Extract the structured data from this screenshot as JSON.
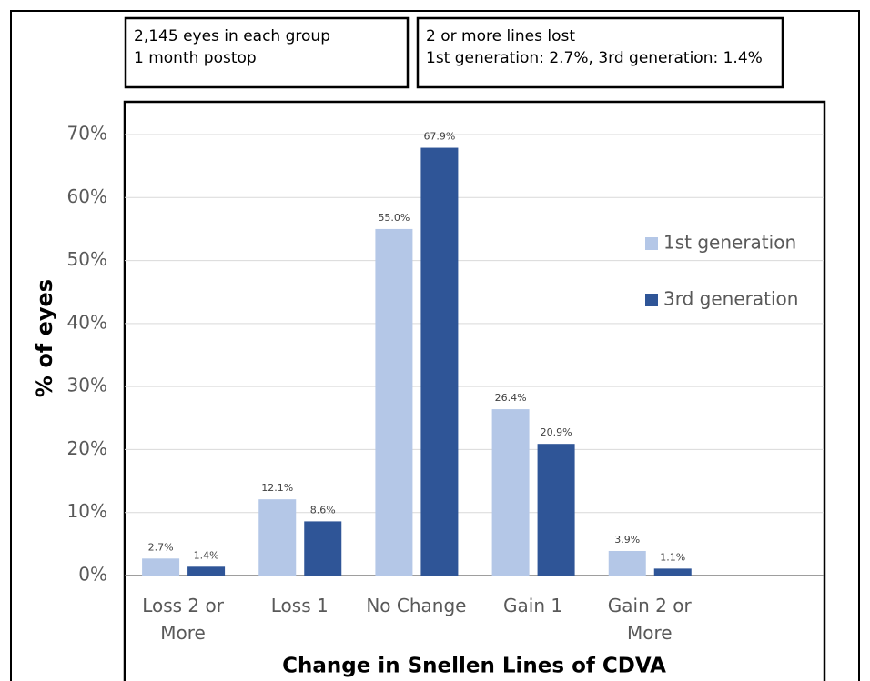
{
  "chart_data": {
    "type": "bar",
    "annotations": [
      [
        "2,145 eyes in each group",
        "1 month postop"
      ],
      [
        "2 or more lines lost",
        "1st generation: 2.7%, 3rd generation: 1.4%"
      ]
    ],
    "xlabel": "Change in Snellen Lines of CDVA",
    "ylabel": "% of eyes",
    "categories": [
      "Loss 2 or More",
      "Loss 1",
      "No Change",
      "Gain 1",
      "Gain 2 or More",
      null
    ],
    "series": [
      {
        "name": "1st generation",
        "color": "#b4c7e7",
        "values": [
          2.7,
          12.1,
          55.0,
          26.4,
          3.9,
          null
        ],
        "value_labels": [
          "2.7%",
          "12.1%",
          "55.0%",
          "26.4%",
          "3.9%",
          null
        ]
      },
      {
        "name": "3rd generation",
        "color": "#2f5597",
        "values": [
          1.4,
          8.6,
          67.9,
          20.9,
          1.1,
          null
        ],
        "value_labels": [
          "1.4%",
          "8.6%",
          "67.9%",
          "20.9%",
          "1.1%",
          null
        ]
      }
    ],
    "ylim": [
      0,
      70
    ],
    "yticks": [
      {
        "value": 0,
        "label": "0%"
      },
      {
        "value": 10,
        "label": "10%"
      },
      {
        "value": 20,
        "label": "20%"
      },
      {
        "value": 30,
        "label": "30%"
      },
      {
        "value": 40,
        "label": "40%"
      },
      {
        "value": 50,
        "label": "50%"
      },
      {
        "value": 60,
        "label": "60%"
      },
      {
        "value": 70,
        "label": "70%"
      }
    ],
    "grid": true,
    "legend": "right"
  }
}
